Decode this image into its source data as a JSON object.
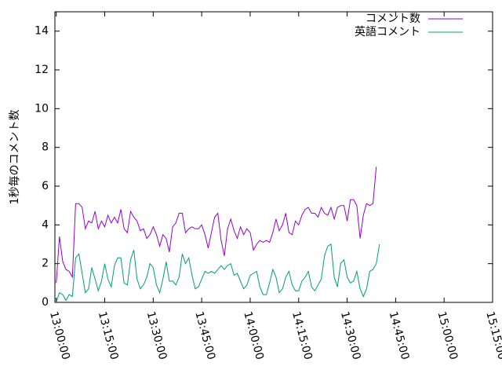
{
  "chart_data": {
    "type": "line",
    "ylabel": "1秒毎のコメント数",
    "ylim": [
      0,
      15
    ],
    "yticks": [
      0,
      2,
      4,
      6,
      8,
      10,
      12,
      14
    ],
    "xlim": [
      "12:59:35",
      "15:15:00"
    ],
    "xticks": [
      "13:00:00",
      "13:15:00",
      "13:30:00",
      "13:45:00",
      "14:00:00",
      "14:15:00",
      "14:30:00",
      "14:45:00",
      "15:00:00",
      "15:15:00"
    ],
    "grid": false,
    "legend": "top-right",
    "sample_interval_min": 1,
    "start_time": "13:00:00",
    "series": [
      {
        "name": "コメント数",
        "color": "#9400d3",
        "values": [
          1.0,
          3.4,
          2.1,
          1.7,
          1.6,
          1.3,
          5.1,
          5.1,
          4.9,
          3.8,
          4.2,
          4.1,
          4.7,
          3.8,
          4.2,
          3.9,
          4.5,
          4.1,
          4.4,
          4.1,
          4.8,
          3.8,
          3.6,
          4.7,
          4.4,
          4.2,
          3.7,
          3.8,
          3.3,
          3.5,
          3.9,
          3.5,
          2.9,
          3.5,
          3.3,
          2.6,
          3.9,
          4.1,
          4.6,
          4.6,
          3.6,
          3.8,
          3.9,
          3.8,
          3.8,
          4.0,
          3.5,
          2.8,
          3.6,
          4.4,
          4.6,
          3.2,
          2.4,
          3.8,
          4.3,
          3.7,
          3.3,
          3.9,
          3.5,
          3.8,
          3.6,
          2.7,
          3.0,
          3.2,
          3.1,
          3.2,
          3.1,
          3.6,
          4.3,
          3.7,
          4.0,
          4.6,
          3.6,
          3.5,
          4.2,
          4.0,
          4.5,
          4.8,
          4.9,
          4.6,
          4.6,
          4.4,
          4.9,
          4.6,
          4.5,
          4.9,
          4.3,
          4.9,
          5.0,
          5.0,
          4.2,
          5.3,
          5.3,
          5.0,
          3.3,
          4.5,
          5.1,
          5.0,
          5.1,
          7.0
        ]
      },
      {
        "name": "英語コメント",
        "color": "#009e73",
        "values": [
          0.0,
          0.5,
          0.4,
          0.1,
          0.4,
          0.3,
          2.3,
          2.5,
          1.5,
          0.5,
          0.7,
          1.8,
          1.2,
          0.6,
          1.1,
          2.0,
          1.2,
          0.8,
          1.9,
          2.3,
          2.3,
          1.0,
          0.9,
          2.2,
          2.7,
          1.2,
          0.7,
          0.9,
          1.3,
          2.0,
          1.8,
          0.9,
          0.5,
          1.2,
          2.1,
          1.1,
          1.1,
          0.9,
          1.3,
          2.5,
          2.0,
          2.3,
          1.4,
          0.7,
          0.8,
          1.2,
          1.6,
          1.5,
          1.6,
          1.5,
          1.7,
          1.9,
          1.7,
          1.9,
          2.0,
          1.4,
          1.5,
          1.1,
          0.7,
          0.9,
          1.4,
          1.5,
          1.6,
          0.8,
          0.4,
          0.4,
          1.0,
          1.7,
          1.3,
          0.5,
          0.7,
          1.3,
          1.6,
          0.9,
          0.6,
          0.6,
          1.1,
          1.3,
          1.6,
          0.8,
          0.6,
          0.9,
          1.2,
          2.4,
          2.9,
          3.0,
          1.3,
          0.8,
          2.0,
          2.2,
          1.3,
          1.0,
          1.1,
          1.6,
          0.7,
          0.3,
          0.7,
          1.6,
          1.7,
          2.0,
          3.0
        ]
      }
    ]
  }
}
